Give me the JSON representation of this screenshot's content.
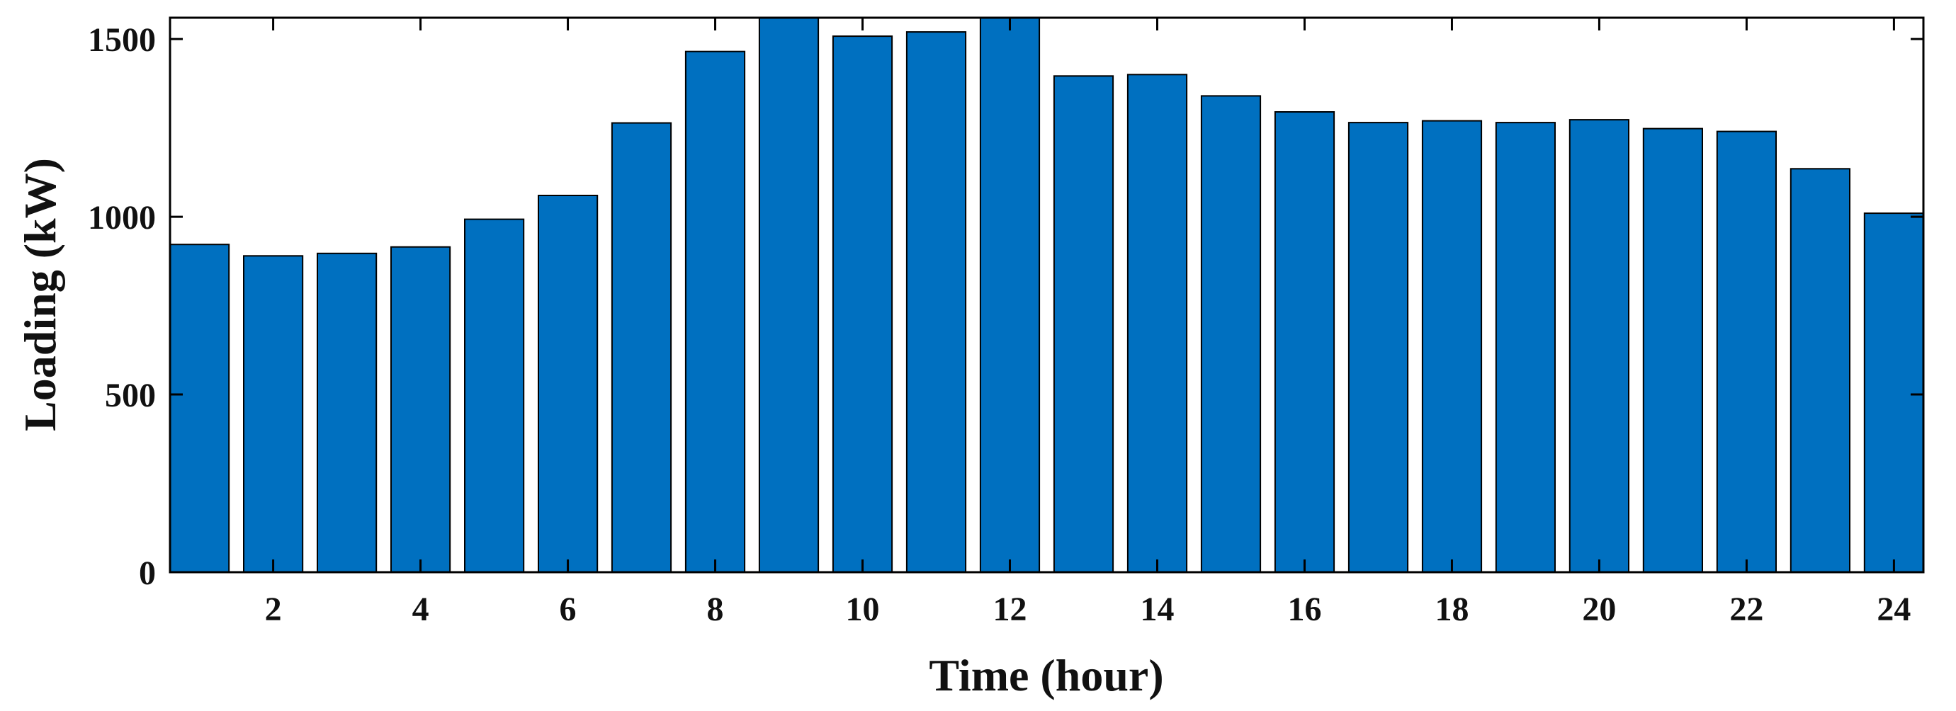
{
  "chart_data": {
    "type": "bar",
    "title": "",
    "xlabel": "Time (hour)",
    "ylabel": "Loading (kW)",
    "categories": [
      1,
      2,
      3,
      4,
      5,
      6,
      7,
      8,
      9,
      10,
      11,
      12,
      13,
      14,
      15,
      16,
      17,
      18,
      19,
      20,
      21,
      22,
      23,
      24
    ],
    "values": [
      922,
      890,
      897,
      915,
      993,
      1060,
      1264,
      1465,
      1570,
      1508,
      1520,
      1570,
      1396,
      1400,
      1340,
      1295,
      1265,
      1270,
      1265,
      1273,
      1248,
      1240,
      1135,
      1010
    ],
    "xlim": [
      0.6,
      24.4
    ],
    "ylim": [
      0,
      1560
    ],
    "xticks": [
      "2",
      "4",
      "6",
      "8",
      "10",
      "12",
      "14",
      "16",
      "18",
      "20",
      "22",
      "24"
    ],
    "yticks": [
      "0",
      "500",
      "1000",
      "1500"
    ],
    "grid": false,
    "legend": "none",
    "bar_color": "#0070C0",
    "bar_edge_color": "#000000"
  }
}
